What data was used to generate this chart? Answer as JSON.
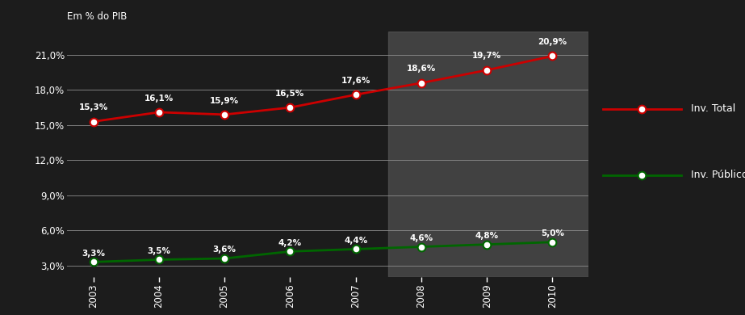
{
  "years": [
    2003,
    2004,
    2005,
    2006,
    2007,
    2008,
    2009,
    2010
  ],
  "inv_total": [
    15.3,
    16.1,
    15.9,
    16.5,
    17.6,
    18.6,
    19.7,
    20.9
  ],
  "inv_publico": [
    3.3,
    3.5,
    3.6,
    4.2,
    4.4,
    4.6,
    4.8,
    5.0
  ],
  "background_color": "#1c1c1c",
  "plot_bg_color": "#1c1c1c",
  "shade_start": 2007.5,
  "shade_end": 2010.55,
  "shade_color": "#666666",
  "shade_alpha": 0.5,
  "line_total_color": "#cc0000",
  "line_publico_color": "#006600",
  "marker_face_color": "#ffffff",
  "grid_color": "#888888",
  "text_color": "#ffffff",
  "top_label": "Em % do PIB",
  "yticks": [
    3.0,
    6.0,
    9.0,
    12.0,
    15.0,
    18.0,
    21.0
  ],
  "ytick_labels": [
    "3,0%",
    "6,0%",
    "9,0%",
    "12,0%",
    "15,0%",
    "18,0%",
    "21,0%"
  ],
  "ylim": [
    2.0,
    23.0
  ],
  "xlim_left": 2002.6,
  "xlim_right": 2010.55,
  "legend_total": "Inv. Total",
  "legend_publico": "Inv. Público",
  "label_offsets_total": [
    [
      2003,
      15.3,
      "15,3%",
      0.0,
      0.85
    ],
    [
      2004,
      16.1,
      "16,1%",
      0.0,
      0.85
    ],
    [
      2005,
      15.9,
      "15,9%",
      0.0,
      0.85
    ],
    [
      2006,
      16.5,
      "16,5%",
      0.0,
      0.85
    ],
    [
      2007,
      17.6,
      "17,6%",
      0.0,
      0.85
    ],
    [
      2008,
      18.6,
      "18,6%",
      0.0,
      0.85
    ],
    [
      2009,
      19.7,
      "19,7%",
      0.0,
      0.85
    ],
    [
      2010,
      20.9,
      "20,9%",
      0.0,
      0.85
    ]
  ],
  "label_offsets_publico": [
    [
      2003,
      3.3,
      "3,3%",
      0.0,
      0.4
    ],
    [
      2004,
      3.5,
      "3,5%",
      0.0,
      0.4
    ],
    [
      2005,
      3.6,
      "3,6%",
      0.0,
      0.4
    ],
    [
      2006,
      4.2,
      "4,2%",
      0.0,
      0.4
    ],
    [
      2007,
      4.4,
      "4,4%",
      0.0,
      0.4
    ],
    [
      2008,
      4.6,
      "4,6%",
      0.0,
      0.4
    ],
    [
      2009,
      4.8,
      "4,8%",
      0.0,
      0.4
    ],
    [
      2010,
      5.0,
      "5,0%",
      0.0,
      0.4
    ]
  ]
}
